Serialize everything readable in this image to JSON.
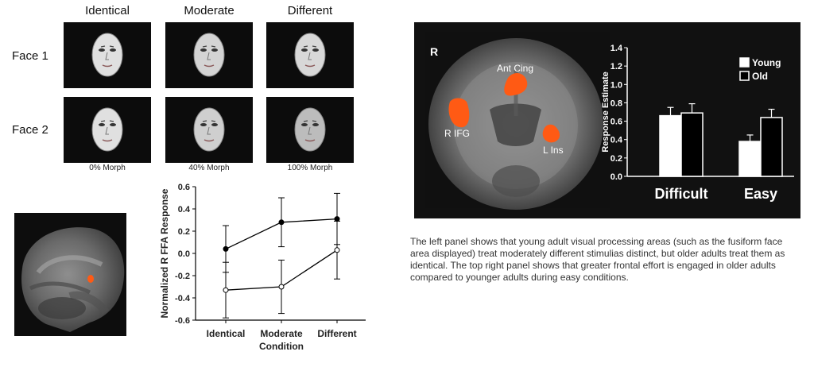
{
  "stimuli": {
    "columns": [
      "Identical",
      "Moderate",
      "Different"
    ],
    "rows": [
      "Face 1",
      "Face 2"
    ],
    "morph_labels": [
      "0% Morph",
      "40% Morph",
      "100% Morph"
    ]
  },
  "chart_data": [
    {
      "type": "line",
      "title": "",
      "xlabel": "Condition",
      "ylabel": "Normalized R FFA Response",
      "categories": [
        "Identical",
        "Moderate",
        "Different"
      ],
      "ylim": [
        -0.6,
        0.6
      ],
      "yticks": [
        "0.6",
        "0.4",
        "0.2",
        "0.0",
        "-0.2",
        "-0.4",
        "-0.6"
      ],
      "series": [
        {
          "values": [
            0.04,
            0.28,
            0.31
          ],
          "error": [
            0.21,
            0.22,
            0.23
          ],
          "marker": "filled"
        },
        {
          "values": [
            -0.33,
            -0.3,
            0.03
          ],
          "error": [
            0.25,
            0.24,
            0.26
          ],
          "marker": "open"
        }
      ]
    },
    {
      "type": "bar",
      "title": "",
      "xlabel": "",
      "ylabel": "Response Estimate",
      "categories": [
        "Difficult",
        "Easy"
      ],
      "ylim": [
        0,
        1.4
      ],
      "yticks": [
        "1.4",
        "1.2",
        "1.0",
        "0.8",
        "0.6",
        "0.4",
        "0.2",
        "0.0"
      ],
      "series": [
        {
          "name": "Young",
          "values": [
            0.66,
            0.38
          ],
          "error": [
            0.09,
            0.07
          ]
        },
        {
          "name": "Old",
          "values": [
            0.69,
            0.64
          ],
          "error": [
            0.1,
            0.09
          ]
        }
      ],
      "legend": "top-right"
    }
  ],
  "brain_coronal": {
    "hemisphere_label": "R",
    "regions": [
      "Ant Cing",
      "R IFG",
      "L Ins"
    ]
  },
  "caption": "The left panel shows that young adult visual processing areas (such as the fusiform face area displayed) treat moderately different stimulias distinct, but older adults treat them as identical. The top right panel shows that greater frontal effort is engaged in older adults compared to younger adults during easy conditions.",
  "colors": {
    "activation": "#ff5a14",
    "background": "#111111"
  }
}
